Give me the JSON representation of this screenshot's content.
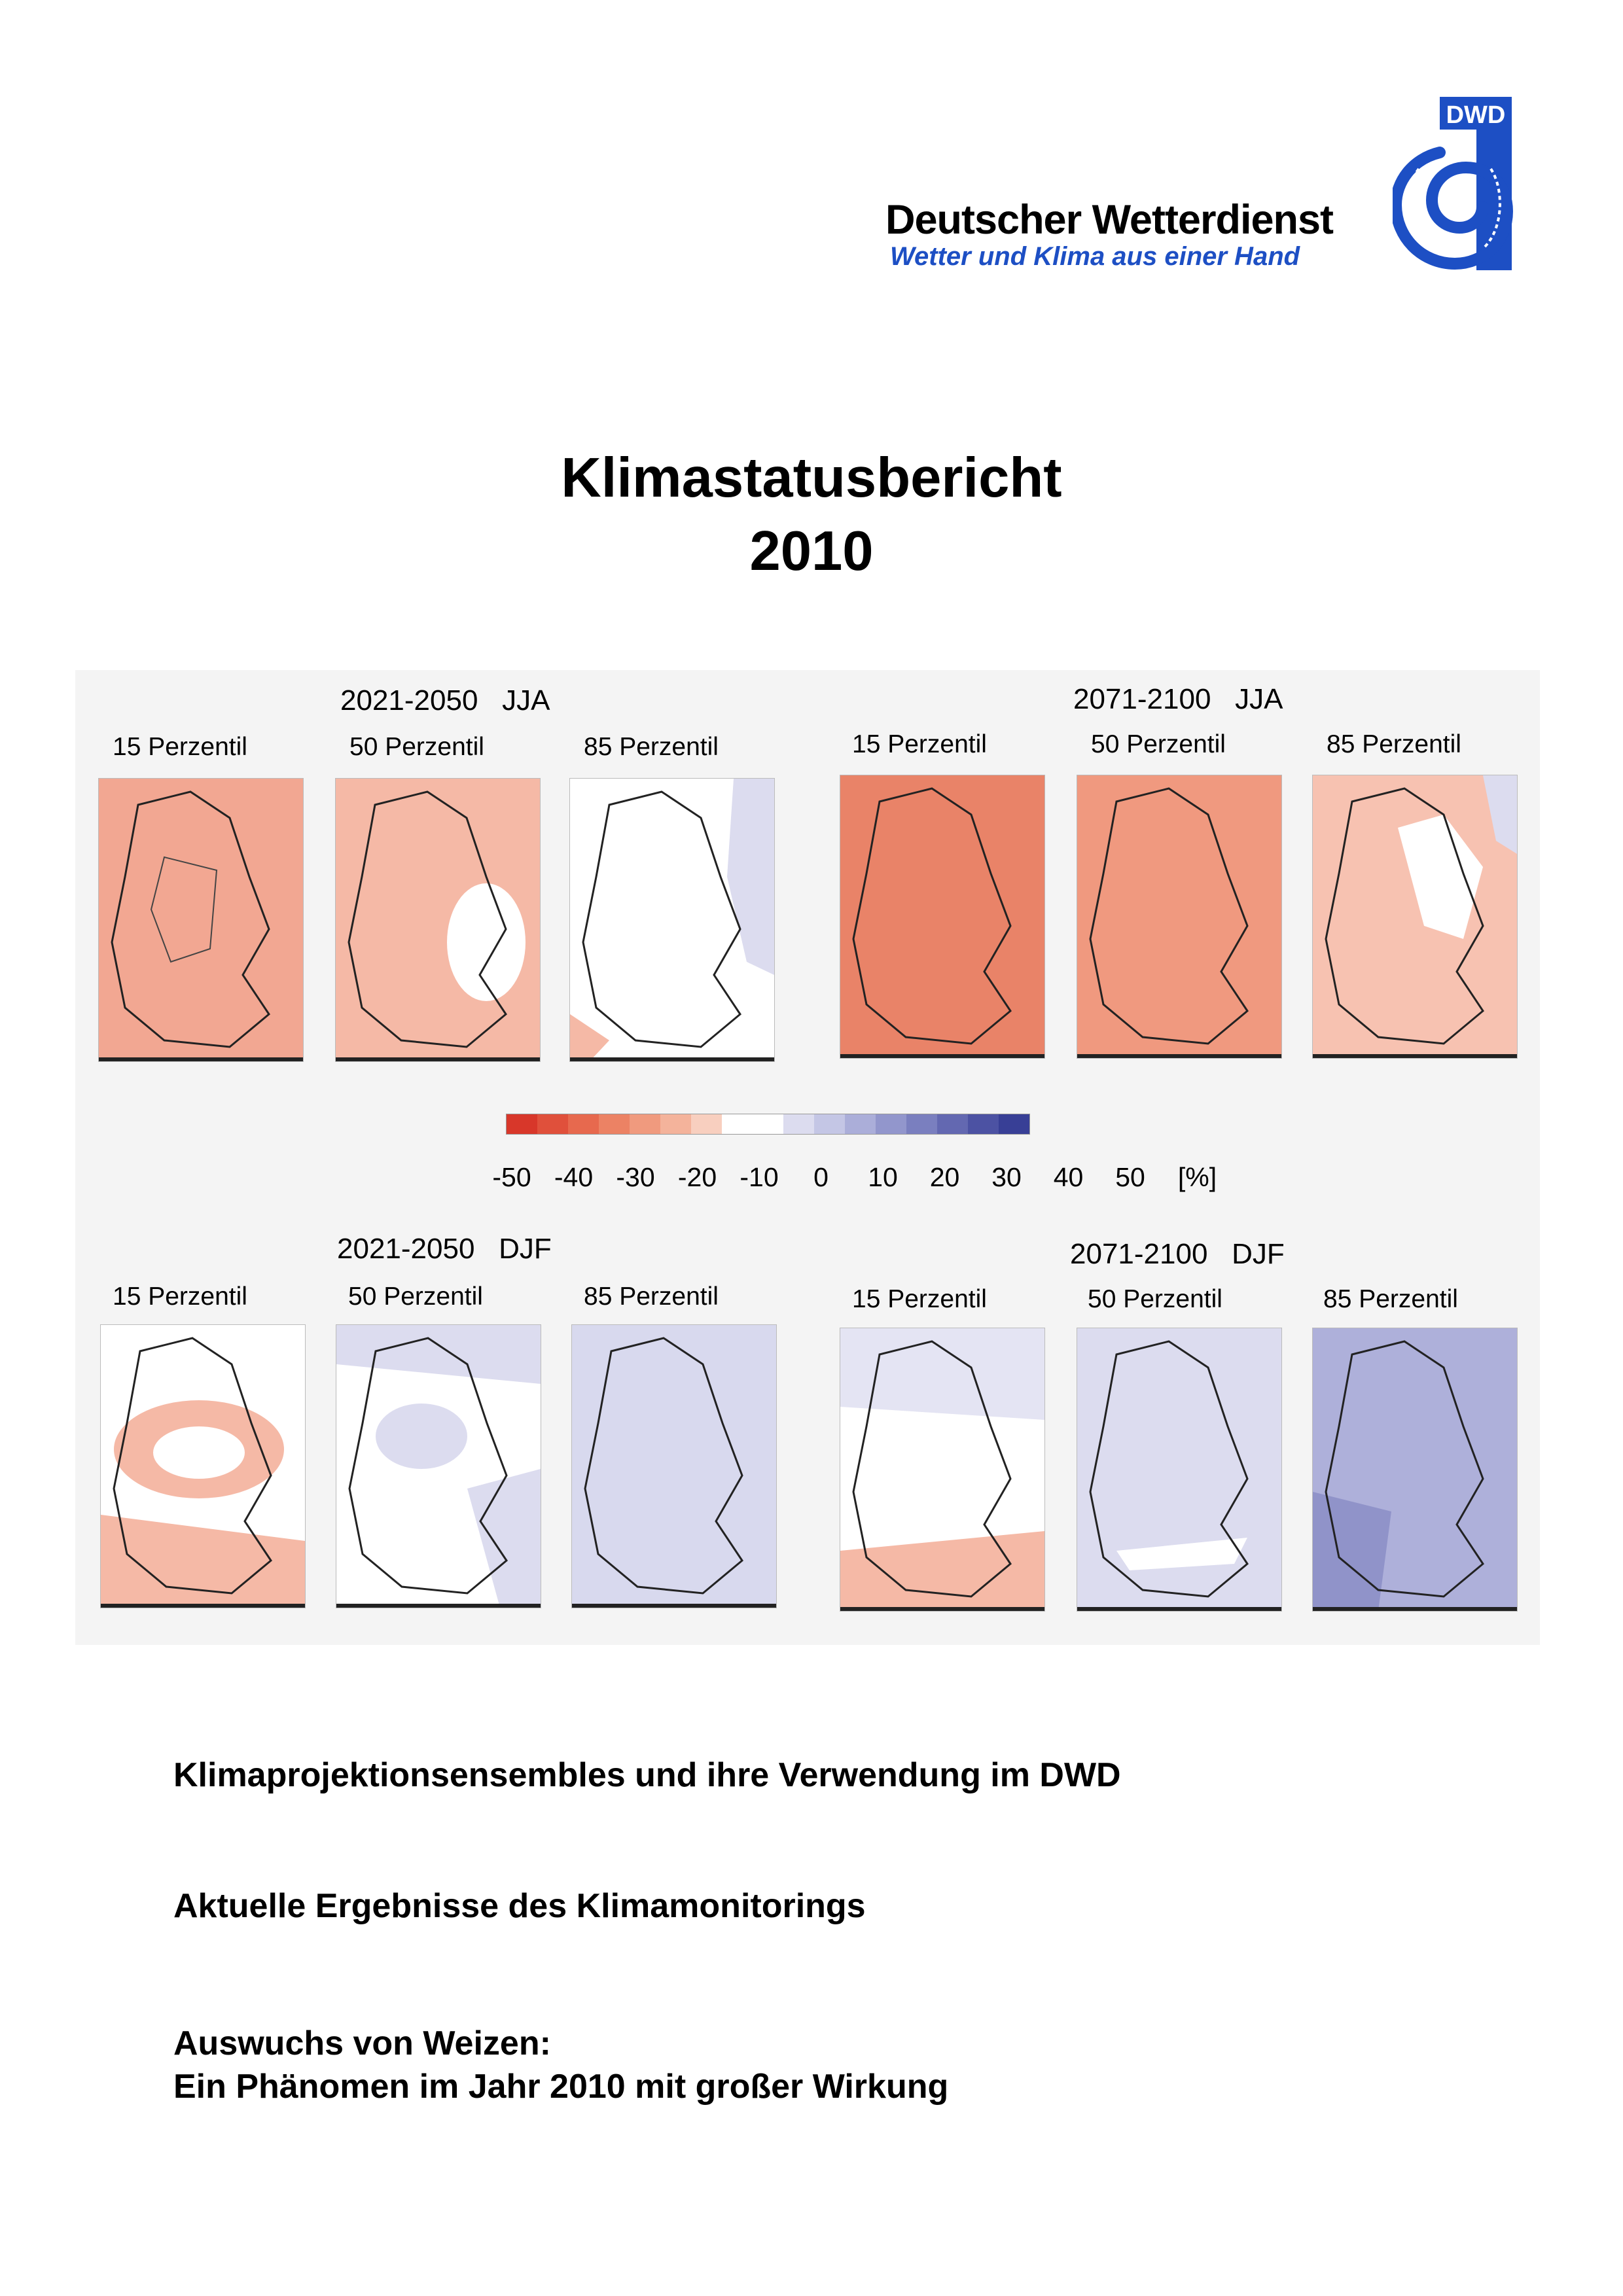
{
  "header": {
    "org_name": "Deutscher Wetterdienst",
    "slogan": "Wetter und Klima aus einer Hand",
    "logo_text": "DWD",
    "brand_color": "#1d4fc4"
  },
  "title": {
    "line1": "Klimastatusbericht",
    "line2": "2010"
  },
  "figure": {
    "panels": [
      {
        "period": "2021-2050",
        "season": "JJA",
        "percentiles": [
          "15 Perzentil",
          "50 Perzentil",
          "85 Perzentil"
        ]
      },
      {
        "period": "2071-2100",
        "season": "JJA",
        "percentiles": [
          "15 Perzentil",
          "50 Perzentil",
          "85 Perzentil"
        ]
      },
      {
        "period": "2021-2050",
        "season": "DJF",
        "percentiles": [
          "15 Perzentil",
          "50 Perzentil",
          "85 Perzentil"
        ]
      },
      {
        "period": "2071-2100",
        "season": "DJF",
        "percentiles": [
          "15 Perzentil",
          "50 Perzentil",
          "85 Perzentil"
        ]
      }
    ],
    "colorbar": {
      "ticks": [
        "-50",
        "-40",
        "-30",
        "-20",
        "-10",
        "0",
        "10",
        "20",
        "30",
        "40",
        "50",
        "[%]"
      ],
      "colors": [
        "#d8372a",
        "#e0503b",
        "#e7694e",
        "#ec8264",
        "#f09a7e",
        "#f4b39b",
        "#f8cfbf",
        "#ffffff",
        "#ffffff",
        "#dcdcef",
        "#c4c6e5",
        "#abaed9",
        "#9296cc",
        "#7a7fbf",
        "#6368b1",
        "#4c52a3",
        "#383f96"
      ]
    }
  },
  "subtitles": {
    "s1": "Klimaprojektionsensembles und ihre Verwendung im DWD",
    "s2": "Aktuelle Ergebnisse des Klimamonitorings",
    "s3_line1": "Auswuchs von Weizen:",
    "s3_line2": "Ein Phänomen im Jahr 2010 mit großer Wirkung"
  }
}
